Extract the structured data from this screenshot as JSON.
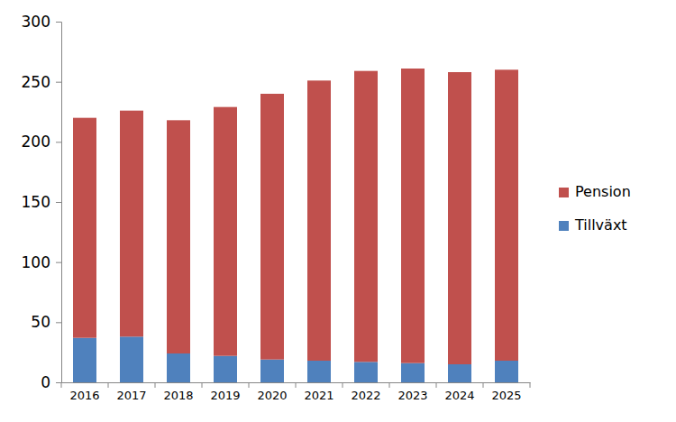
{
  "chart_data": {
    "type": "bar",
    "stacked": true,
    "legend": "right",
    "categories": [
      "2016",
      "2017",
      "2018",
      "2019",
      "2020",
      "2021",
      "2022",
      "2023",
      "2024",
      "2025"
    ],
    "series": [
      {
        "name": "Tillväxt",
        "color": "#4f81bd",
        "values": [
          37,
          38,
          24,
          22,
          19,
          18,
          17,
          16,
          15,
          18
        ]
      },
      {
        "name": "Pension",
        "color": "#c0504d",
        "values": [
          183,
          188,
          194,
          207,
          221,
          233,
          242,
          245,
          243,
          242
        ]
      }
    ],
    "ylim": [
      0,
      300
    ],
    "yticks": [
      0,
      50,
      100,
      150,
      200,
      250,
      300
    ],
    "grid": false
  }
}
